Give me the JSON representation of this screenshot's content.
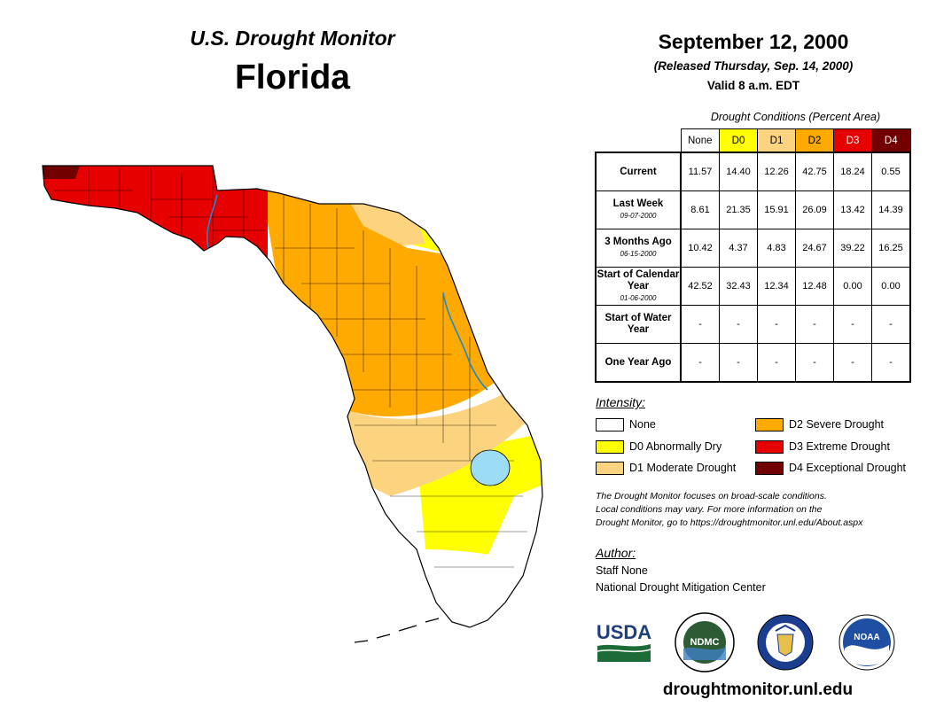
{
  "header": {
    "source": "U.S. Drought Monitor",
    "state": "Florida",
    "date": "September 12, 2000",
    "released": "(Released Thursday, Sep. 14, 2000)",
    "valid": "Valid 8 a.m. EDT"
  },
  "table": {
    "caption": "Drought Conditions (Percent Area)",
    "columns": [
      "None",
      "D0",
      "D1",
      "D2",
      "D3",
      "D4"
    ],
    "column_colors": [
      "#ffffff",
      "#ffff00",
      "#fcd37f",
      "#ffaa00",
      "#e60000",
      "#730000"
    ],
    "rows": [
      {
        "label": "Current",
        "sub": "",
        "values": [
          "11.57",
          "14.40",
          "12.26",
          "42.75",
          "18.24",
          "0.55"
        ]
      },
      {
        "label": "Last Week",
        "sub": "09-07-2000",
        "values": [
          "8.61",
          "21.35",
          "15.91",
          "26.09",
          "13.42",
          "14.39"
        ]
      },
      {
        "label": "3 Months Ago",
        "sub": "06-15-2000",
        "values": [
          "10.42",
          "4.37",
          "4.83",
          "24.67",
          "39.22",
          "16.25"
        ]
      },
      {
        "label": "Start of Calendar Year",
        "sub": "01-06-2000",
        "values": [
          "42.52",
          "32.43",
          "12.34",
          "12.48",
          "0.00",
          "0.00"
        ]
      },
      {
        "label": "Start of Water Year",
        "sub": "",
        "values": [
          "-",
          "-",
          "-",
          "-",
          "-",
          "-"
        ]
      },
      {
        "label": "One Year Ago",
        "sub": "",
        "values": [
          "-",
          "-",
          "-",
          "-",
          "-",
          "-"
        ]
      }
    ]
  },
  "legend": {
    "title": "Intensity:",
    "items": [
      {
        "label": "None",
        "color": "#ffffff"
      },
      {
        "label": "D0 Abnormally Dry",
        "color": "#ffff00"
      },
      {
        "label": "D1 Moderate Drought",
        "color": "#fcd37f"
      },
      {
        "label": "D2 Severe Drought",
        "color": "#ffaa00"
      },
      {
        "label": "D3 Extreme Drought",
        "color": "#e60000"
      },
      {
        "label": "D4 Exceptional Drought",
        "color": "#730000"
      }
    ]
  },
  "note": {
    "line1": "The Drought Monitor focuses on broad-scale conditions.",
    "line2": "Local conditions may vary. For more information on the",
    "line3": "Drought Monitor, go to https://droughtmonitor.unl.edu/About.aspx"
  },
  "author": {
    "title": "Author:",
    "name": "Staff None",
    "org": "National Drought Mitigation Center"
  },
  "logos": {
    "usda": "USDA",
    "ndmc": "NDMC",
    "noaa": "NOAA"
  },
  "website": "droughtmonitor.unl.edu"
}
